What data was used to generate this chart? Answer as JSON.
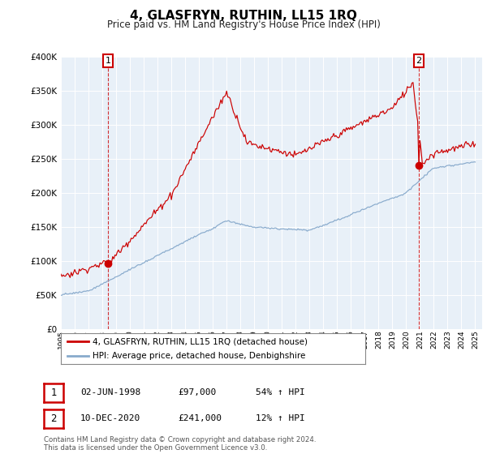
{
  "title": "4, GLASFRYN, RUTHIN, LL15 1RQ",
  "subtitle": "Price paid vs. HM Land Registry's House Price Index (HPI)",
  "red_label": "4, GLASFRYN, RUTHIN, LL15 1RQ (detached house)",
  "blue_label": "HPI: Average price, detached house, Denbighshire",
  "sale1_date": "02-JUN-1998",
  "sale1_price": "£97,000",
  "sale1_hpi": "54% ↑ HPI",
  "sale2_date": "10-DEC-2020",
  "sale2_price": "£241,000",
  "sale2_hpi": "12% ↑ HPI",
  "footer": "Contains HM Land Registry data © Crown copyright and database right 2024.\nThis data is licensed under the Open Government Licence v3.0.",
  "ylim": [
    0,
    400000
  ],
  "yticks": [
    0,
    50000,
    100000,
    150000,
    200000,
    250000,
    300000,
    350000,
    400000
  ],
  "red_color": "#cc0000",
  "blue_color": "#88aacc",
  "bg_color": "#ffffff",
  "plot_bg": "#e8f0f8",
  "grid_color": "#ffffff",
  "sale1_x": 1998.42,
  "sale2_x": 2020.92,
  "marker1_label": "1",
  "marker2_label": "2",
  "xmin": 1995,
  "xmax": 2025.5
}
